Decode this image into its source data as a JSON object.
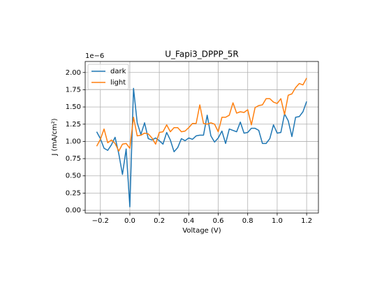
{
  "chart_data": {
    "type": "line",
    "title": "U_Fapi3_DPPP_5R",
    "x_label": "Voltage (V)",
    "y_label": "J (mA/cm²)",
    "y_offset_label": "1e−6",
    "x": [
      -0.225,
      -0.2,
      -0.175,
      -0.15,
      -0.125,
      -0.1,
      -0.075,
      -0.05,
      -0.025,
      0.0,
      0.025,
      0.05,
      0.075,
      0.1,
      0.125,
      0.15,
      0.175,
      0.2,
      0.225,
      0.25,
      0.275,
      0.3,
      0.325,
      0.35,
      0.375,
      0.4,
      0.425,
      0.45,
      0.475,
      0.5,
      0.525,
      0.55,
      0.575,
      0.6,
      0.625,
      0.65,
      0.675,
      0.7,
      0.725,
      0.75,
      0.775,
      0.8,
      0.825,
      0.85,
      0.875,
      0.9,
      0.925,
      0.95,
      0.975,
      1.0,
      1.025,
      1.05,
      1.075,
      1.1,
      1.125,
      1.15,
      1.175,
      1.2
    ],
    "series": [
      {
        "name": "dark",
        "color": "#1f77b4",
        "values": [
          1.14,
          1.04,
          0.9,
          0.87,
          0.95,
          1.06,
          0.82,
          0.52,
          0.89,
          0.05,
          1.77,
          1.27,
          1.1,
          1.27,
          1.04,
          1.02,
          1.05,
          1.01,
          0.96,
          1.13,
          1.02,
          0.85,
          0.91,
          1.04,
          1.01,
          1.05,
          1.03,
          1.08,
          1.09,
          1.09,
          1.38,
          1.08,
          0.99,
          1.05,
          1.15,
          0.97,
          1.18,
          1.16,
          1.14,
          1.28,
          1.12,
          1.13,
          1.19,
          1.19,
          1.16,
          0.97,
          0.97,
          1.04,
          1.24,
          1.12,
          1.13,
          1.4,
          1.3,
          1.07,
          1.35,
          1.36,
          1.43,
          1.58
        ]
      },
      {
        "name": "light",
        "color": "#ff7f0e",
        "values": [
          0.93,
          1.03,
          1.18,
          0.98,
          1.02,
          0.97,
          0.86,
          0.96,
          0.97,
          0.9,
          1.35,
          1.08,
          1.09,
          1.12,
          1.11,
          1.05,
          0.96,
          1.13,
          1.14,
          1.24,
          1.14,
          1.2,
          1.2,
          1.14,
          1.15,
          1.2,
          1.26,
          1.26,
          1.53,
          1.26,
          1.25,
          1.27,
          1.25,
          1.14,
          1.35,
          1.35,
          1.38,
          1.56,
          1.41,
          1.43,
          1.42,
          1.46,
          1.24,
          1.49,
          1.52,
          1.53,
          1.62,
          1.62,
          1.57,
          1.55,
          1.62,
          1.39,
          1.67,
          1.69,
          1.78,
          1.84,
          1.82,
          1.92
        ]
      }
    ],
    "xlim": [
      -0.303,
      1.28
    ],
    "ylim": [
      -0.04,
      2.16
    ],
    "xticks": [
      {
        "value": -0.2,
        "label": "−0.2"
      },
      {
        "value": 0.0,
        "label": "0.0"
      },
      {
        "value": 0.2,
        "label": "0.2"
      },
      {
        "value": 0.4,
        "label": "0.4"
      },
      {
        "value": 0.6,
        "label": "0.6"
      },
      {
        "value": 0.8,
        "label": "0.8"
      },
      {
        "value": 1.0,
        "label": "1.0"
      },
      {
        "value": 1.2,
        "label": "1.2"
      }
    ],
    "yticks": [
      {
        "value": 0,
        "label": "0.00"
      },
      {
        "value": 0.25,
        "label": "0.25"
      },
      {
        "value": 0.5,
        "label": "0.50"
      },
      {
        "value": 0.75,
        "label": "0.75"
      },
      {
        "value": 1.0,
        "label": "1.00"
      },
      {
        "value": 1.25,
        "label": "1.25"
      },
      {
        "value": 1.5,
        "label": "1.50"
      },
      {
        "value": 1.75,
        "label": "1.75"
      },
      {
        "value": 2.0,
        "label": "2.00"
      }
    ],
    "grid": true,
    "legend": "upper left"
  }
}
